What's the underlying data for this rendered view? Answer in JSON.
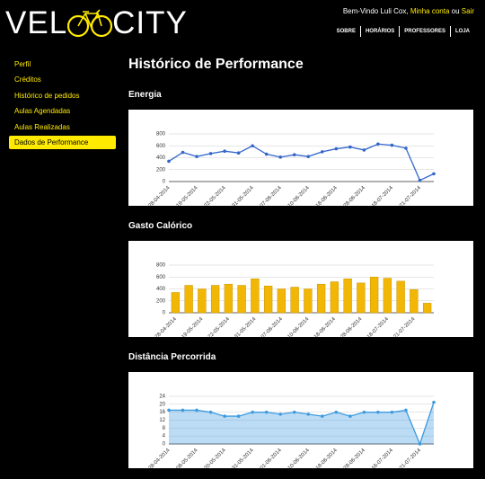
{
  "header": {
    "logo_left": "VEL",
    "logo_right": "CITY",
    "welcome": "Bem-Vindo Luli Cox, ",
    "account": "Minha conta",
    "or": " ou ",
    "logout": "Sair",
    "nav": [
      "SOBRE",
      "HORÁRIOS",
      "PROFESSORES",
      "LOJA"
    ]
  },
  "sidebar": {
    "items": [
      "Perfil",
      "Créditos",
      "Histórico de pedidos",
      "Aulas Agendadas",
      "Aulas Realizadas",
      "Dados de Performance"
    ],
    "active": 5
  },
  "main": {
    "title": "Histórico de Performance"
  },
  "chart_data": [
    {
      "type": "line",
      "title": "Energia",
      "color": "#3366cc",
      "categories": [
        "28-04-2014",
        null,
        "19-05-2014",
        null,
        "22-05-2014",
        null,
        "31-05-2014",
        null,
        "07-06-2014",
        null,
        "10-06-2014",
        null,
        "18-06-2014",
        null,
        "28-06-2014",
        null,
        "18-07-2014",
        null,
        "21-07-2014",
        null
      ],
      "values": [
        340,
        490,
        420,
        470,
        510,
        480,
        600,
        460,
        410,
        450,
        420,
        500,
        550,
        580,
        530,
        630,
        610,
        560,
        20,
        130
      ],
      "ylim": [
        0,
        800
      ],
      "yticks": [
        0,
        200,
        400,
        600,
        800
      ],
      "grid": true
    },
    {
      "type": "bar",
      "title": "Gasto Calórico",
      "color": "#f2b705",
      "categories": [
        "28-04-2014",
        null,
        "19-05-2014",
        null,
        "22-05-2014",
        null,
        "31-05-2014",
        null,
        "07-06-2014",
        null,
        "10-06-2014",
        null,
        "18-06-2014",
        null,
        "28-06-2014",
        null,
        "18-07-2014",
        null,
        "21-07-2014",
        null
      ],
      "values": [
        340,
        460,
        400,
        460,
        480,
        460,
        570,
        450,
        400,
        430,
        400,
        480,
        520,
        570,
        500,
        600,
        580,
        530,
        390,
        160
      ],
      "ylim": [
        0,
        800
      ],
      "yticks": [
        0,
        200,
        400,
        600,
        800
      ],
      "grid": true
    },
    {
      "type": "area",
      "title": "Distância Percorrida",
      "color": "#3d9be0",
      "categories": [
        "28-04-2014",
        null,
        "08-05-2014",
        null,
        "20-05-2014",
        null,
        "31-05-2014",
        null,
        "01-06-2014",
        null,
        "10-06-2014",
        null,
        "18-06-2014",
        null,
        "28-06-2014",
        null,
        "16-07-2014",
        null,
        "21-07-2014",
        null
      ],
      "values": [
        17,
        17,
        17,
        16,
        14,
        14,
        16,
        16,
        15,
        16,
        15,
        14,
        16,
        14,
        16,
        16,
        16,
        17,
        0,
        21
      ],
      "ylim": [
        0,
        24
      ],
      "yticks": [
        0,
        4,
        8,
        12,
        16,
        20,
        24
      ],
      "grid": true
    }
  ]
}
